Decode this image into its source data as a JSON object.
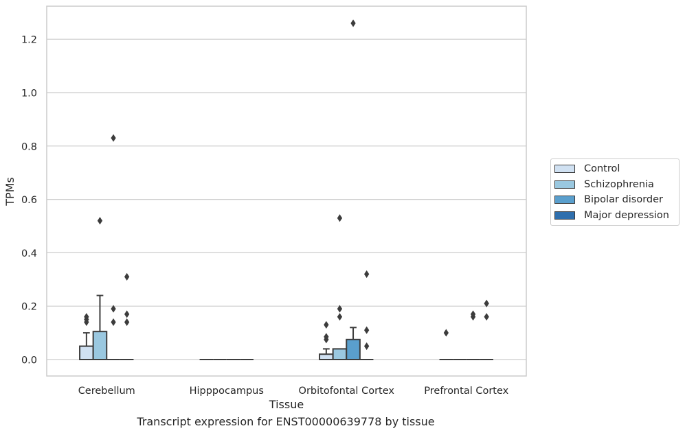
{
  "chart_data": {
    "type": "box",
    "xlabel": "Tissue",
    "ylabel": "TPMs",
    "caption": "Transcript expression for ENST00000639778 by tissue",
    "ylim": [
      -0.06,
      1.32
    ],
    "yticks": [
      "0.0",
      "0.2",
      "0.4",
      "0.6",
      "0.8",
      "1.0",
      "1.2"
    ],
    "grid": true,
    "legend_position": "right",
    "categories": [
      "Cerebellum",
      "Hipppocampus",
      "Orbitofontal Cortex",
      "Prefrontal Cortex"
    ],
    "series": [
      {
        "name": "Control",
        "color": "#d0e1f2",
        "boxes": [
          {
            "q1": 0.0,
            "median": 0.0,
            "q3": 0.05,
            "whislo": 0.0,
            "whishi": 0.1,
            "fliers": [
              0.14,
              0.15,
              0.16
            ]
          },
          {
            "q1": 0.0,
            "median": 0.0,
            "q3": 0.0,
            "whislo": 0.0,
            "whishi": 0.0,
            "fliers": []
          },
          {
            "q1": 0.0,
            "median": 0.0,
            "q3": 0.02,
            "whislo": 0.0,
            "whishi": 0.04,
            "fliers": [
              0.075,
              0.085,
              0.13
            ]
          },
          {
            "q1": 0.0,
            "median": 0.0,
            "q3": 0.0,
            "whislo": 0.0,
            "whishi": 0.0,
            "fliers": [
              0.1
            ]
          }
        ]
      },
      {
        "name": "Schizophrenia",
        "color": "#9ac8e0",
        "boxes": [
          {
            "q1": 0.0,
            "median": 0.0,
            "q3": 0.105,
            "whislo": 0.0,
            "whishi": 0.24,
            "fliers": [
              0.52
            ]
          },
          {
            "q1": 0.0,
            "median": 0.0,
            "q3": 0.0,
            "whislo": 0.0,
            "whishi": 0.0,
            "fliers": []
          },
          {
            "q1": 0.0,
            "median": 0.0,
            "q3": 0.04,
            "whislo": 0.0,
            "whishi": 0.04,
            "fliers": [
              0.16,
              0.19,
              0.53
            ]
          },
          {
            "q1": 0.0,
            "median": 0.0,
            "q3": 0.0,
            "whislo": 0.0,
            "whishi": 0.0,
            "fliers": []
          }
        ]
      },
      {
        "name": "Bipolar disorder",
        "color": "#5a9fcd",
        "boxes": [
          {
            "q1": 0.0,
            "median": 0.0,
            "q3": 0.0,
            "whislo": 0.0,
            "whishi": 0.0,
            "fliers": [
              0.14,
              0.19,
              0.83
            ]
          },
          {
            "q1": 0.0,
            "median": 0.0,
            "q3": 0.0,
            "whislo": 0.0,
            "whishi": 0.0,
            "fliers": []
          },
          {
            "q1": 0.0,
            "median": 0.0,
            "q3": 0.075,
            "whislo": 0.0,
            "whishi": 0.12,
            "fliers": [
              1.26
            ]
          },
          {
            "q1": 0.0,
            "median": 0.0,
            "q3": 0.0,
            "whislo": 0.0,
            "whishi": 0.0,
            "fliers": [
              0.16,
              0.17
            ]
          }
        ]
      },
      {
        "name": "Major depression",
        "color": "#2f6fad",
        "boxes": [
          {
            "q1": 0.0,
            "median": 0.0,
            "q3": 0.0,
            "whislo": 0.0,
            "whishi": 0.0,
            "fliers": [
              0.14,
              0.17,
              0.31
            ]
          },
          {
            "q1": 0.0,
            "median": 0.0,
            "q3": 0.0,
            "whislo": 0.0,
            "whishi": 0.0,
            "fliers": []
          },
          {
            "q1": 0.0,
            "median": 0.0,
            "q3": 0.0,
            "whislo": 0.0,
            "whishi": 0.0,
            "fliers": [
              0.05,
              0.11,
              0.32
            ]
          },
          {
            "q1": 0.0,
            "median": 0.0,
            "q3": 0.0,
            "whislo": 0.0,
            "whishi": 0.0,
            "fliers": [
              0.16,
              0.21
            ]
          }
        ]
      }
    ]
  }
}
